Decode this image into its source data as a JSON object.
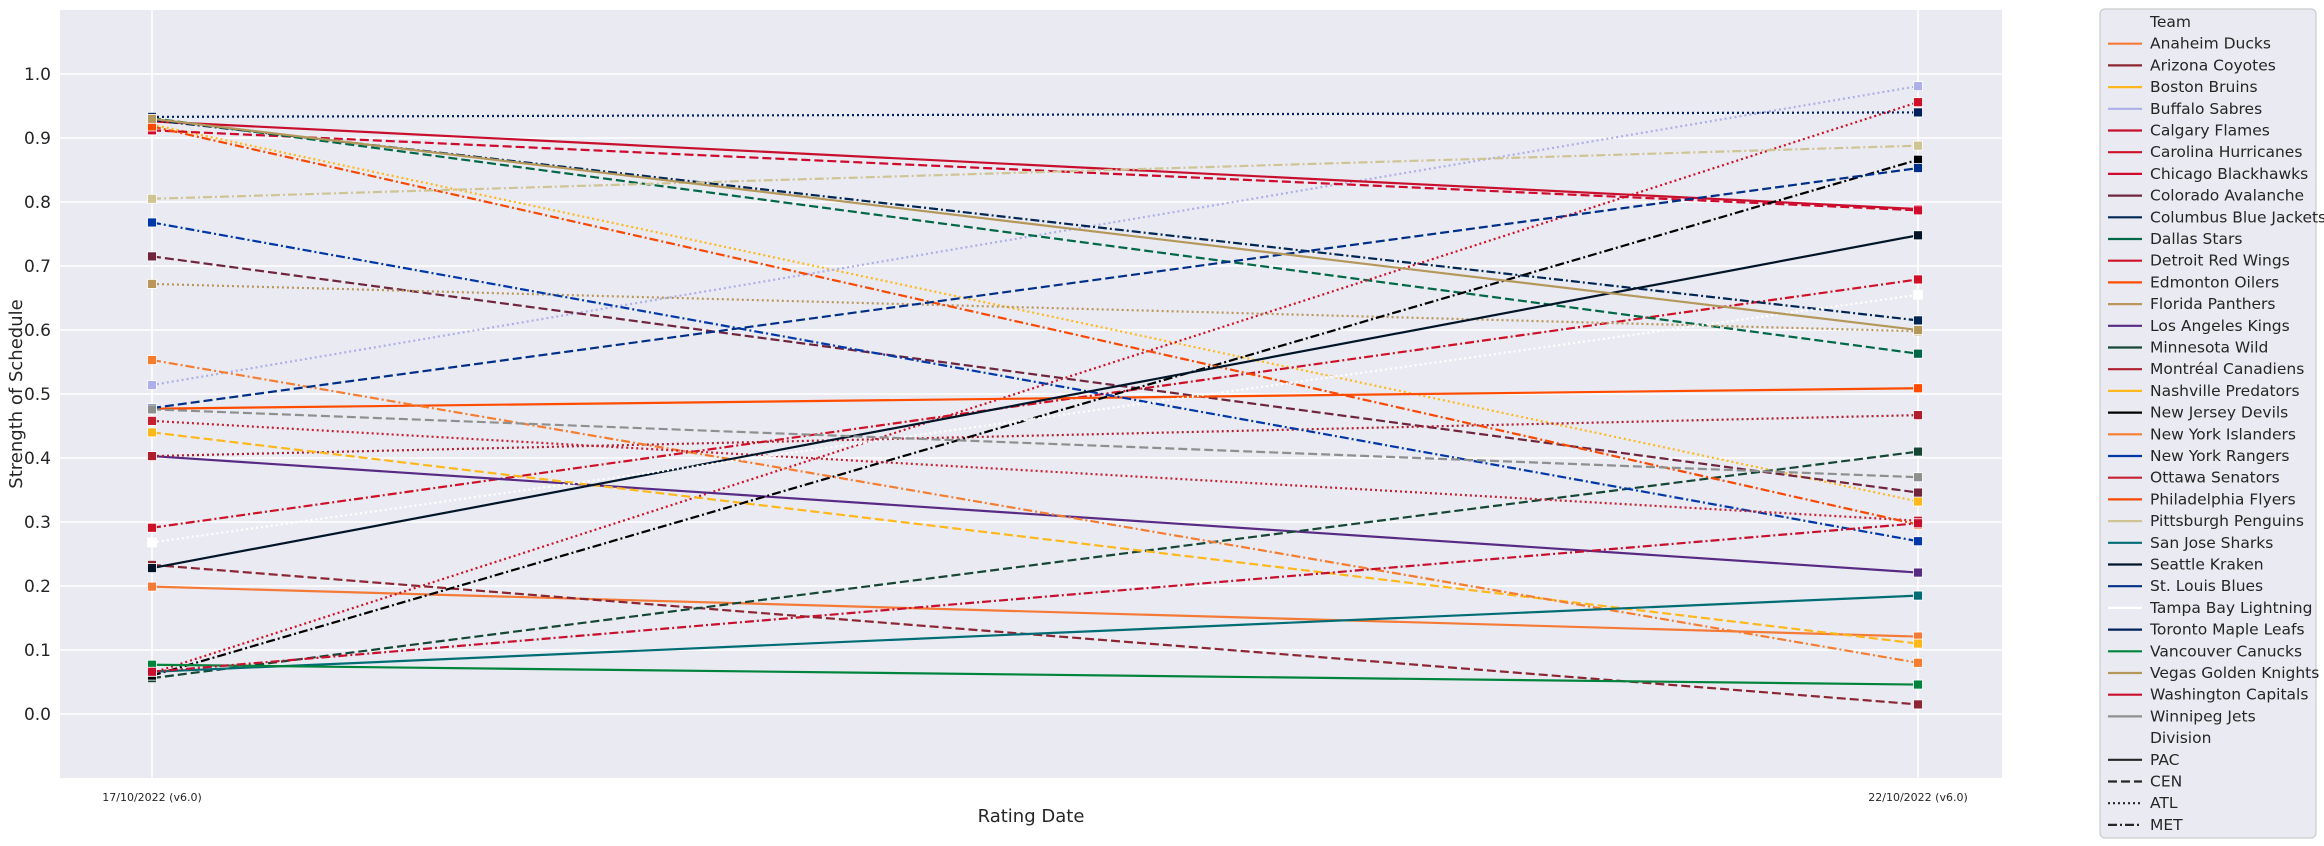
{
  "chart_data": {
    "type": "line",
    "x": [
      "17/10/2022 (v6.0)",
      "22/10/2022 (v6.0)"
    ],
    "xlabel": "Rating Date",
    "ylabel": "Strength of Schedule",
    "ylim": [
      -0.1,
      1.1
    ],
    "yticks": [
      "0.0",
      "0.1",
      "0.2",
      "0.3",
      "0.4",
      "0.5",
      "0.6",
      "0.7",
      "0.8",
      "0.9",
      "1.0"
    ],
    "grid": true,
    "legend_placement": "outside right",
    "legend_team_title": "Team",
    "legend_division_title": "Division",
    "divisions": [
      {
        "name": "PAC",
        "dash": "solid"
      },
      {
        "name": "CEN",
        "dash": "dashed"
      },
      {
        "name": "ATL",
        "dash": "dotted"
      },
      {
        "name": "MET",
        "dash": "dashdot"
      }
    ],
    "series": [
      {
        "name": "Anaheim Ducks",
        "color": "#F47A38",
        "division": "PAC",
        "values": [
          0.199,
          0.121
        ]
      },
      {
        "name": "Arizona Coyotes",
        "color": "#8C2633",
        "division": "CEN",
        "values": [
          0.233,
          0.015
        ]
      },
      {
        "name": "Boston Bruins",
        "color": "#FFB81C",
        "division": "ATL",
        "values": [
          0.921,
          0.332
        ]
      },
      {
        "name": "Buffalo Sabres",
        "color": "#ADAFE8",
        "division": "ATL",
        "values": [
          0.514,
          0.981
        ]
      },
      {
        "name": "Calgary Flames",
        "color": "#C8102E",
        "division": "PAC",
        "values": [
          0.926,
          0.789
        ]
      },
      {
        "name": "Carolina Hurricanes",
        "color": "#CE1126",
        "division": "MET",
        "values": [
          0.291,
          0.679
        ]
      },
      {
        "name": "Chicago Blackhawks",
        "color": "#CF0A2C",
        "division": "CEN",
        "values": [
          0.912,
          0.787
        ]
      },
      {
        "name": "Colorado Avalanche",
        "color": "#6F263D",
        "division": "CEN",
        "values": [
          0.715,
          0.346
        ]
      },
      {
        "name": "Columbus Blue Jackets",
        "color": "#002654",
        "division": "MET",
        "values": [
          0.928,
          0.615
        ]
      },
      {
        "name": "Dallas Stars",
        "color": "#006847",
        "division": "CEN",
        "values": [
          0.931,
          0.563
        ]
      },
      {
        "name": "Detroit Red Wings",
        "color": "#CE1126",
        "division": "ATL",
        "values": [
          0.064,
          0.956
        ]
      },
      {
        "name": "Edmonton Oilers",
        "color": "#FF4C00",
        "division": "PAC",
        "values": [
          0.477,
          0.509
        ]
      },
      {
        "name": "Florida Panthers",
        "color": "#B9975B",
        "division": "ATL",
        "values": [
          0.672,
          0.598
        ]
      },
      {
        "name": "Los Angeles Kings",
        "color": "#572A84",
        "division": "PAC",
        "values": [
          0.403,
          0.221
        ]
      },
      {
        "name": "Minnesota Wild",
        "color": "#154734",
        "division": "CEN",
        "values": [
          0.056,
          0.41
        ]
      },
      {
        "name": "Montréal Canadiens",
        "color": "#AF1E2D",
        "division": "ATL",
        "values": [
          0.403,
          0.467
        ]
      },
      {
        "name": "Nashville Predators",
        "color": "#FFB81C",
        "division": "CEN",
        "values": [
          0.44,
          0.11
        ]
      },
      {
        "name": "New Jersey Devils",
        "color": "#000000",
        "division": "MET",
        "values": [
          0.06,
          0.866
        ]
      },
      {
        "name": "New York Islanders",
        "color": "#F47D30",
        "division": "MET",
        "values": [
          0.553,
          0.08
        ]
      },
      {
        "name": "New York Rangers",
        "color": "#0038A8",
        "division": "MET",
        "values": [
          0.768,
          0.27
        ]
      },
      {
        "name": "Ottawa Senators",
        "color": "#C52032",
        "division": "ATL",
        "values": [
          0.458,
          0.302
        ]
      },
      {
        "name": "Philadelphia Flyers",
        "color": "#F74902",
        "division": "MET",
        "values": [
          0.918,
          0.296
        ]
      },
      {
        "name": "Pittsburgh Penguins",
        "color": "#CFC493",
        "division": "MET",
        "values": [
          0.805,
          0.888
        ]
      },
      {
        "name": "San Jose Sharks",
        "color": "#006D75",
        "division": "PAC",
        "values": [
          0.066,
          0.185
        ]
      },
      {
        "name": "Seattle Kraken",
        "color": "#001628",
        "division": "PAC",
        "values": [
          0.228,
          0.748
        ]
      },
      {
        "name": "St. Louis Blues",
        "color": "#002F87",
        "division": "CEN",
        "values": [
          0.478,
          0.853
        ]
      },
      {
        "name": "Tampa Bay Lightning",
        "color": "#FFFFFF",
        "division": "ATL",
        "values": [
          0.268,
          0.655
        ]
      },
      {
        "name": "Toronto Maple Leafs",
        "color": "#00205B",
        "division": "ATL",
        "values": [
          0.933,
          0.94
        ]
      },
      {
        "name": "Vancouver Canucks",
        "color": "#00843D",
        "division": "PAC",
        "values": [
          0.077,
          0.046
        ]
      },
      {
        "name": "Vegas Golden Knights",
        "color": "#B4975A",
        "division": "PAC",
        "values": [
          0.93,
          0.6
        ]
      },
      {
        "name": "Washington Capitals",
        "color": "#C8102E",
        "division": "MET",
        "values": [
          0.066,
          0.298
        ]
      },
      {
        "name": "Winnipeg Jets",
        "color": "#8E9090",
        "division": "CEN",
        "values": [
          0.476,
          0.37
        ]
      }
    ]
  }
}
